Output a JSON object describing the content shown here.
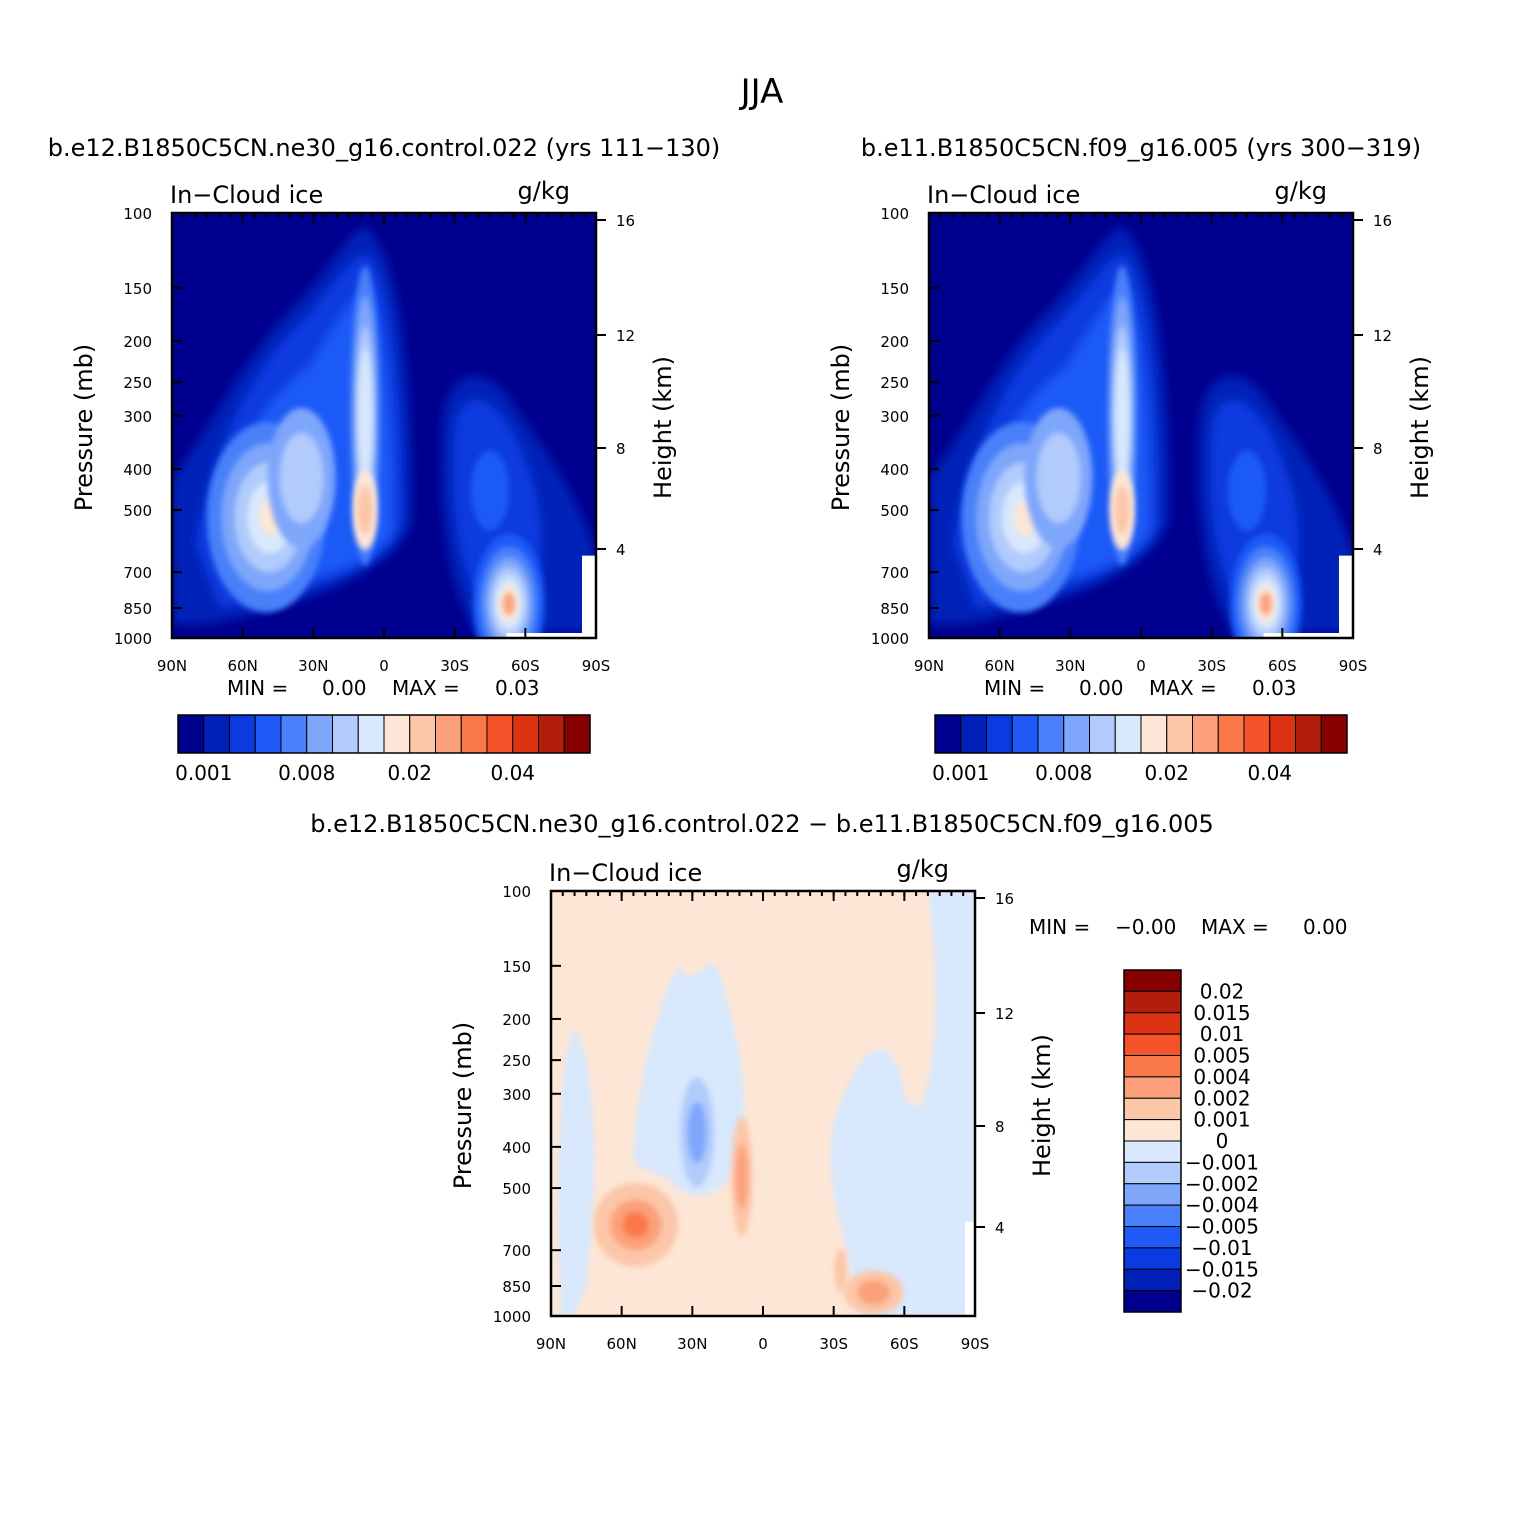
{
  "figure": {
    "title": "JJA"
  },
  "chart_data": [
    {
      "type": "contour",
      "title": "b.e12.B1850C5CN.ne30_g16.control.022 (yrs 111-130)",
      "variable_label": "In-Cloud ice",
      "units_label": "g/kg",
      "xlabel": "",
      "ylabel": "Pressure (mb)",
      "ylabel_right": "Height (km)",
      "x_ticks": [
        "90N",
        "60N",
        "30N",
        "0",
        "30S",
        "60S",
        "90S"
      ],
      "x_range": [
        90,
        -90
      ],
      "y_ticks": [
        "100",
        "150",
        "200",
        "250",
        "300",
        "400",
        "500",
        "700",
        "850",
        "1000"
      ],
      "y_range_mb": [
        100,
        1000
      ],
      "height_ticks": [
        "16",
        "12",
        "8",
        "4"
      ],
      "min_label": "MIN =",
      "min_value": "0.00",
      "max_label": "MAX =",
      "max_value": "0.03",
      "colorbar_labels": [
        "0.001",
        "0.008",
        "0.02",
        "0.04"
      ],
      "maxima": [
        {
          "lat": -55,
          "p_mb": 850,
          "value": 0.03
        },
        {
          "lat": 8,
          "p_mb": 500,
          "value": 0.02
        },
        {
          "lat": 50,
          "p_mb": 560,
          "value": 0.015
        }
      ]
    },
    {
      "type": "contour",
      "title": "b.e11.B1850C5CN.f09_g16.005 (yrs 300-319)",
      "variable_label": "In-Cloud ice",
      "units_label": "g/kg",
      "xlabel": "",
      "ylabel": "Pressure (mb)",
      "ylabel_right": "Height (km)",
      "x_ticks": [
        "90N",
        "60N",
        "30N",
        "0",
        "30S",
        "60S",
        "90S"
      ],
      "x_range": [
        90,
        -90
      ],
      "y_ticks": [
        "100",
        "150",
        "200",
        "250",
        "300",
        "400",
        "500",
        "700",
        "850",
        "1000"
      ],
      "y_range_mb": [
        100,
        1000
      ],
      "height_ticks": [
        "16",
        "12",
        "8",
        "4"
      ],
      "min_label": "MIN =",
      "min_value": "0.00",
      "max_label": "MAX =",
      "max_value": "0.03",
      "colorbar_labels": [
        "0.001",
        "0.008",
        "0.02",
        "0.04"
      ],
      "maxima": [
        {
          "lat": -52,
          "p_mb": 850,
          "value": 0.03
        },
        {
          "lat": 8,
          "p_mb": 500,
          "value": 0.02
        },
        {
          "lat": 52,
          "p_mb": 530,
          "value": 0.012
        }
      ]
    },
    {
      "type": "contour",
      "title": "b.e12.B1850C5CN.ne30_g16.control.022 - b.e11.B1850C5CN.f09_g16.005",
      "variable_label": "In-Cloud ice",
      "units_label": "g/kg",
      "xlabel": "",
      "ylabel": "Pressure (mb)",
      "ylabel_right": "Height (km)",
      "x_ticks": [
        "90N",
        "60N",
        "30N",
        "0",
        "30S",
        "60S",
        "90S"
      ],
      "x_range": [
        90,
        -90
      ],
      "y_ticks": [
        "100",
        "150",
        "200",
        "250",
        "300",
        "400",
        "500",
        "700",
        "850",
        "1000"
      ],
      "y_range_mb": [
        100,
        1000
      ],
      "height_ticks": [
        "16",
        "12",
        "8",
        "4"
      ],
      "min_label": "MIN =",
      "min_value": "-0.00",
      "max_label": "MAX =",
      "max_value": "0.00",
      "colorbar_labels": [
        "0.02",
        "0.015",
        "0.01",
        "0.005",
        "0.004",
        "0.002",
        "0.001",
        "0",
        "-0.001",
        "-0.002",
        "-0.004",
        "-0.005",
        "-0.01",
        "-0.015",
        "-0.02"
      ]
    }
  ],
  "colors": {
    "seq": [
      "#00008f",
      "#0020b8",
      "#0a3be0",
      "#1f5af7",
      "#4a80fa",
      "#7ea6fb",
      "#b1cbfc",
      "#d8e8fd",
      "#fde6d5",
      "#fcc6a8",
      "#fba07a",
      "#fa774a",
      "#f5522a",
      "#dc3313",
      "#b21e0c",
      "#860000"
    ],
    "div": [
      "#860000",
      "#b21e0c",
      "#dc3313",
      "#f5522a",
      "#fa774a",
      "#fba07a",
      "#fcc6a8",
      "#fde6d5",
      "#d8e8fd",
      "#b1cbfc",
      "#7ea6fb",
      "#4a80fa",
      "#1f5af7",
      "#0a3be0",
      "#0020b8",
      "#00008f"
    ]
  }
}
